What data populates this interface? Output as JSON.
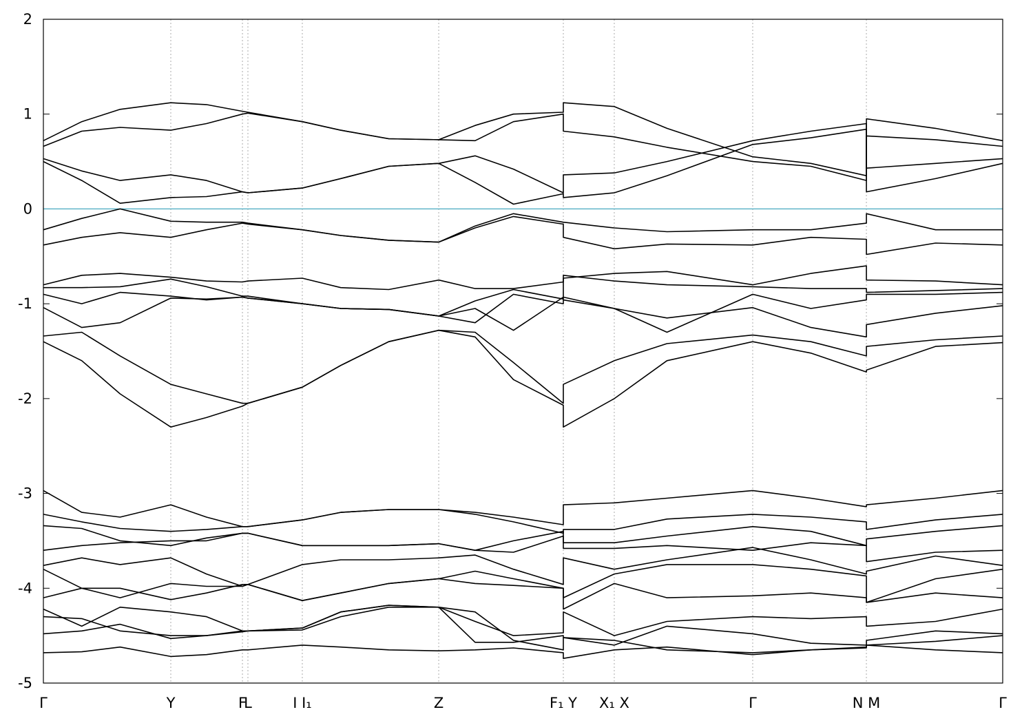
{
  "chart_data": {
    "type": "line",
    "color": "#000000",
    "reference_line": {
      "value": 0,
      "color": "#5fb4c9"
    },
    "xgrid": true,
    "xlim": [
      0,
      1
    ],
    "ylim": [
      -5,
      2
    ],
    "yticks": [
      -5,
      -4,
      -3,
      -2,
      -1,
      0,
      1,
      2
    ],
    "xticks": [
      {
        "value": 0,
        "label": "Γ"
      },
      {
        "value": 0.1328,
        "label": "Y"
      },
      {
        "value": 0.2075,
        "label": "F"
      },
      {
        "value": 0.2132,
        "label": "L"
      },
      {
        "value": 0.2699,
        "label": "I  I₁"
      },
      {
        "value": 0.4121,
        "label": "Z"
      },
      {
        "value": 0.542,
        "label": "F₁ Y"
      },
      {
        "value": 0.5951,
        "label": "X₁ X"
      },
      {
        "value": 0.7394,
        "label": "Γ"
      },
      {
        "value": 0.8579,
        "label": "N M"
      },
      {
        "value": 1,
        "label": "Γ"
      }
    ],
    "x": [
      0,
      0.04,
      0.08,
      0.1328,
      0.17,
      0.2075,
      0.2132,
      0.2699,
      0.31,
      0.36,
      0.4121,
      0.45,
      0.49,
      0.542,
      0.542,
      0.5951,
      0.65,
      0.7394,
      0.8,
      0.8579,
      0.8579,
      0.93,
      1
    ],
    "series": [
      {
        "values": [
          0.72,
          0.92,
          1.05,
          1.12,
          1.1,
          1.03,
          1.02,
          0.92,
          0.83,
          0.74,
          0.73,
          0.88,
          1.0,
          1.02,
          1.12,
          1.08,
          0.85,
          0.55,
          0.48,
          0.35,
          0.95,
          0.85,
          0.72
        ]
      },
      {
        "values": [
          0.66,
          0.82,
          0.86,
          0.83,
          0.9,
          1.0,
          1.01,
          0.92,
          0.83,
          0.74,
          0.73,
          0.72,
          0.92,
          1.0,
          0.82,
          0.76,
          0.65,
          0.5,
          0.45,
          0.3,
          0.77,
          0.73,
          0.66
        ]
      },
      {
        "values": [
          0.53,
          0.4,
          0.3,
          0.36,
          0.3,
          0.18,
          0.17,
          0.22,
          0.32,
          0.45,
          0.48,
          0.56,
          0.42,
          0.17,
          0.36,
          0.38,
          0.5,
          0.72,
          0.82,
          0.9,
          0.43,
          0.48,
          0.53
        ]
      },
      {
        "values": [
          0.5,
          0.3,
          0.06,
          0.12,
          0.13,
          0.18,
          0.17,
          0.22,
          0.32,
          0.45,
          0.48,
          0.28,
          0.05,
          0.16,
          0.12,
          0.17,
          0.35,
          0.68,
          0.75,
          0.84,
          0.18,
          0.32,
          0.48
        ]
      },
      {
        "values": [
          -0.22,
          -0.1,
          0.0,
          -0.13,
          -0.14,
          -0.14,
          -0.15,
          -0.22,
          -0.28,
          -0.33,
          -0.35,
          -0.18,
          -0.05,
          -0.14,
          -0.14,
          -0.2,
          -0.24,
          -0.22,
          -0.22,
          -0.15,
          -0.05,
          -0.22,
          -0.22
        ]
      },
      {
        "values": [
          -0.38,
          -0.3,
          -0.25,
          -0.3,
          -0.22,
          -0.15,
          -0.16,
          -0.22,
          -0.28,
          -0.33,
          -0.35,
          -0.2,
          -0.08,
          -0.16,
          -0.3,
          -0.42,
          -0.37,
          -0.38,
          -0.3,
          -0.32,
          -0.48,
          -0.36,
          -0.38
        ]
      },
      {
        "values": [
          -0.8,
          -0.7,
          -0.68,
          -0.72,
          -0.76,
          -0.77,
          -0.76,
          -0.73,
          -0.83,
          -0.85,
          -0.75,
          -0.84,
          -0.84,
          -0.77,
          -0.73,
          -0.68,
          -0.66,
          -0.8,
          -0.68,
          -0.6,
          -0.75,
          -0.76,
          -0.8
        ]
      },
      {
        "values": [
          -0.83,
          -0.83,
          -0.82,
          -0.74,
          -0.82,
          -0.92,
          -0.92,
          -1.0,
          -1.05,
          -1.06,
          -1.13,
          -0.97,
          -0.85,
          -0.95,
          -0.7,
          -0.76,
          -0.8,
          -0.82,
          -0.84,
          -0.84,
          -0.88,
          -0.86,
          -0.84
        ]
      },
      {
        "values": [
          -0.9,
          -1.0,
          -0.88,
          -0.92,
          -0.96,
          -0.93,
          -0.94,
          -1.0,
          -1.05,
          -1.06,
          -1.13,
          -1.05,
          -1.28,
          -0.93,
          -0.93,
          -1.05,
          -1.3,
          -0.9,
          -1.05,
          -0.96,
          -0.9,
          -0.9,
          -0.88
        ]
      },
      {
        "values": [
          -1.04,
          -1.25,
          -1.2,
          -0.94,
          -0.95,
          -0.93,
          -0.94,
          -1.0,
          -1.05,
          -1.06,
          -1.13,
          -1.2,
          -0.9,
          -1.0,
          -0.96,
          -1.05,
          -1.15,
          -1.04,
          -1.25,
          -1.35,
          -1.22,
          -1.1,
          -1.02
        ]
      },
      {
        "values": [
          -1.34,
          -1.3,
          -1.55,
          -1.85,
          -1.95,
          -2.05,
          -2.05,
          -1.88,
          -1.65,
          -1.4,
          -1.28,
          -1.3,
          -1.62,
          -2.05,
          -1.85,
          -1.6,
          -1.42,
          -1.33,
          -1.4,
          -1.55,
          -1.45,
          -1.38,
          -1.34
        ]
      },
      {
        "values": [
          -1.4,
          -1.6,
          -1.95,
          -2.3,
          -2.2,
          -2.08,
          -2.05,
          -1.88,
          -1.65,
          -1.4,
          -1.28,
          -1.35,
          -1.8,
          -2.07,
          -2.3,
          -2.0,
          -1.6,
          -1.4,
          -1.52,
          -1.72,
          -1.7,
          -1.45,
          -1.41
        ]
      },
      {
        "values": [
          -2.97,
          -3.2,
          -3.25,
          -3.12,
          -3.25,
          -3.35,
          -3.35,
          -3.28,
          -3.2,
          -3.17,
          -3.17,
          -3.2,
          -3.25,
          -3.33,
          -3.12,
          -3.1,
          -3.05,
          -2.97,
          -3.05,
          -3.14,
          -3.12,
          -3.05,
          -2.97
        ]
      },
      {
        "values": [
          -3.22,
          -3.3,
          -3.37,
          -3.4,
          -3.38,
          -3.35,
          -3.35,
          -3.28,
          -3.2,
          -3.17,
          -3.17,
          -3.22,
          -3.3,
          -3.42,
          -3.38,
          -3.38,
          -3.27,
          -3.22,
          -3.25,
          -3.3,
          -3.38,
          -3.28,
          -3.22
        ]
      },
      {
        "values": [
          -3.34,
          -3.37,
          -3.5,
          -3.55,
          -3.47,
          -3.42,
          -3.42,
          -3.55,
          -3.55,
          -3.55,
          -3.53,
          -3.6,
          -3.5,
          -3.4,
          -3.52,
          -3.52,
          -3.45,
          -3.35,
          -3.4,
          -3.55,
          -3.48,
          -3.4,
          -3.34
        ]
      },
      {
        "values": [
          -3.6,
          -3.55,
          -3.52,
          -3.5,
          -3.5,
          -3.42,
          -3.42,
          -3.55,
          -3.55,
          -3.55,
          -3.53,
          -3.6,
          -3.62,
          -3.45,
          -3.58,
          -3.58,
          -3.55,
          -3.6,
          -3.52,
          -3.55,
          -3.72,
          -3.62,
          -3.6
        ]
      },
      {
        "values": [
          -3.76,
          -3.68,
          -3.75,
          -3.68,
          -3.85,
          -3.98,
          -3.96,
          -3.75,
          -3.7,
          -3.7,
          -3.68,
          -3.65,
          -3.8,
          -3.96,
          -3.68,
          -3.8,
          -3.7,
          -3.57,
          -3.7,
          -3.85,
          -3.82,
          -3.66,
          -3.76
        ]
      },
      {
        "values": [
          -3.8,
          -4.0,
          -4.1,
          -3.95,
          -3.98,
          -3.98,
          -3.96,
          -4.13,
          -4.05,
          -3.95,
          -3.9,
          -3.82,
          -3.9,
          -4.0,
          -4.1,
          -3.85,
          -3.75,
          -3.75,
          -3.8,
          -3.87,
          -4.15,
          -3.9,
          -3.8
        ]
      },
      {
        "values": [
          -4.1,
          -4.0,
          -4.0,
          -4.12,
          -4.05,
          -3.96,
          -3.96,
          -4.13,
          -4.05,
          -3.95,
          -3.9,
          -3.95,
          -3.97,
          -4.0,
          -4.22,
          -3.95,
          -4.1,
          -4.08,
          -4.05,
          -4.1,
          -4.15,
          -4.05,
          -4.1
        ]
      },
      {
        "values": [
          -4.22,
          -4.4,
          -4.2,
          -4.25,
          -4.3,
          -4.45,
          -4.45,
          -4.42,
          -4.25,
          -4.18,
          -4.2,
          -4.35,
          -4.5,
          -4.47,
          -4.25,
          -4.5,
          -4.35,
          -4.3,
          -4.32,
          -4.3,
          -4.4,
          -4.35,
          -4.22
        ]
      },
      {
        "values": [
          -4.3,
          -4.32,
          -4.45,
          -4.5,
          -4.5,
          -4.45,
          -4.45,
          -4.42,
          -4.25,
          -4.18,
          -4.2,
          -4.25,
          -4.55,
          -4.65,
          -4.52,
          -4.6,
          -4.4,
          -4.48,
          -4.58,
          -4.6,
          -4.55,
          -4.45,
          -4.48
        ]
      },
      {
        "values": [
          -4.48,
          -4.45,
          -4.38,
          -4.53,
          -4.5,
          -4.46,
          -4.45,
          -4.44,
          -4.3,
          -4.2,
          -4.2,
          -4.57,
          -4.57,
          -4.5,
          -4.52,
          -4.55,
          -4.65,
          -4.68,
          -4.65,
          -4.62,
          -4.6,
          -4.56,
          -4.5
        ]
      },
      {
        "values": [
          -4.68,
          -4.67,
          -4.62,
          -4.72,
          -4.7,
          -4.65,
          -4.65,
          -4.6,
          -4.62,
          -4.65,
          -4.66,
          -4.65,
          -4.63,
          -4.68,
          -4.74,
          -4.65,
          -4.62,
          -4.7,
          -4.65,
          -4.63,
          -4.6,
          -4.65,
          -4.68
        ]
      }
    ]
  }
}
